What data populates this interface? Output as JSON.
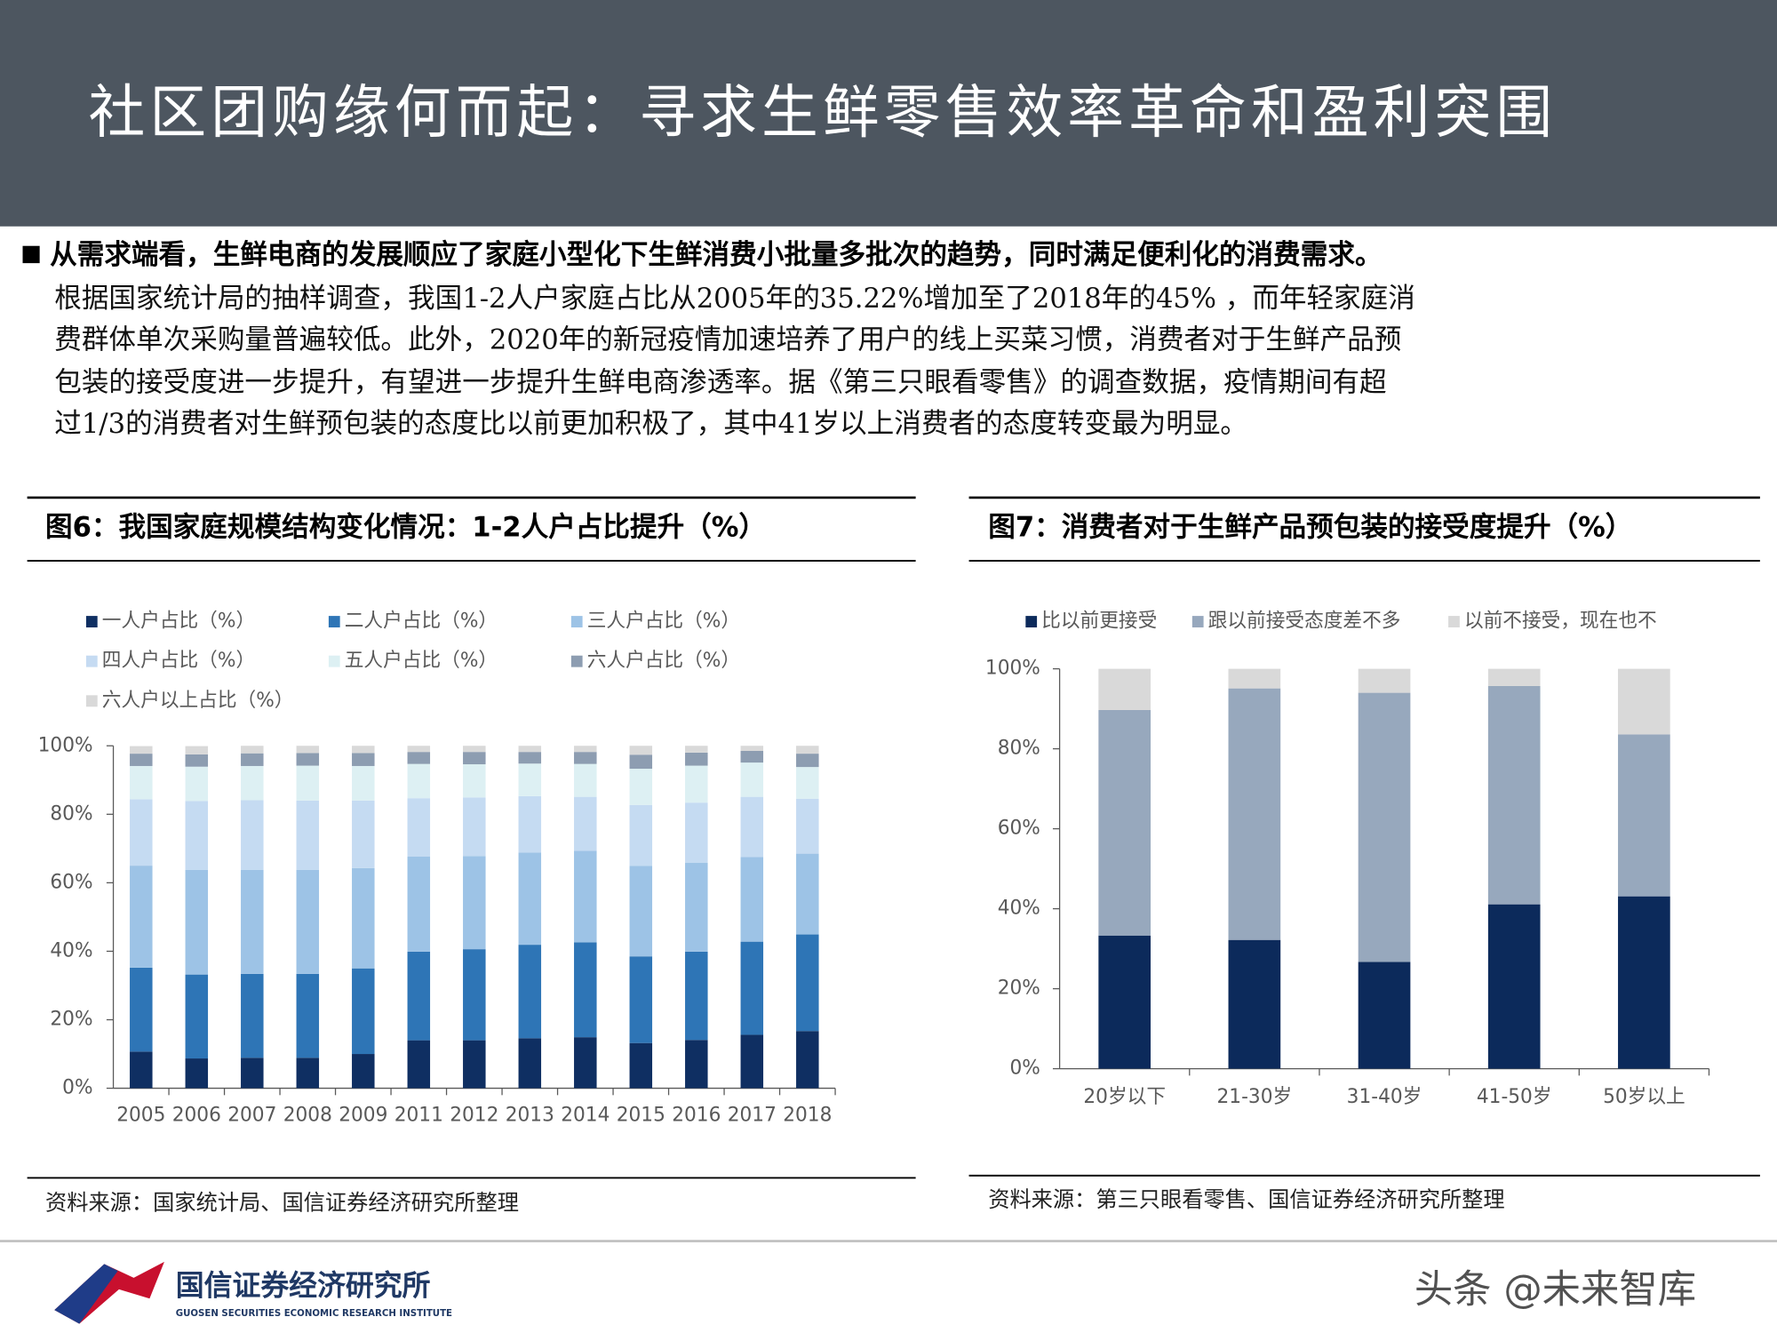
{
  "header": {
    "title": "社区团购缘何而起：寻求生鲜零售效率革命和盈利突围"
  },
  "intro": {
    "lead": "从需求端看，生鲜电商的发展顺应了家庭小型化下生鲜消费小批量多批次的趋势，同时满足便利化的消费需求。",
    "lines": [
      "根据国家统计局的抽样调查，我国1-2人户家庭占比从2005年的35.22%增加至了2018年的45% ，而年轻家庭消",
      "费群体单次采购量普遍较低。此外，2020年的新冠疫情加速培养了用户的线上买菜习惯，消费者对于生鲜产品预",
      "包装的接受度进一步提升，有望进一步提升生鲜电商渗透率。据《第三只眼看零售》的调查数据，疫情期间有超",
      "过1/3的消费者对生鲜预包装的态度比以前更加积极了，其中41岁以上消费者的态度转变最为明显。"
    ]
  },
  "chart_data": [
    {
      "type": "stacked-bar",
      "title": "图6：我国家庭规模结构变化情况：1-2人户占比提升（%）",
      "source": "资料来源：国家统计局、国信证券经济研究所整理",
      "categories": [
        "2005",
        "2006",
        "2007",
        "2008",
        "2009",
        "2011",
        "2012",
        "2013",
        "2014",
        "2015",
        "2016",
        "2017",
        "2018"
      ],
      "series": [
        {
          "name": "一人户占比（%）",
          "color": "#0f2f62",
          "values": [
            10.7,
            8.7,
            8.9,
            8.9,
            10.0,
            14.0,
            14.0,
            14.6,
            14.9,
            13.2,
            14.1,
            15.6,
            16.7
          ]
        },
        {
          "name": "二人户占比（%）",
          "color": "#2e75b6",
          "values": [
            24.5,
            24.5,
            24.5,
            24.5,
            25.0,
            25.9,
            26.6,
            27.3,
            27.7,
            25.3,
            25.8,
            27.2,
            28.2
          ]
        },
        {
          "name": "三人户占比（%）",
          "color": "#9dc3e6",
          "values": [
            29.8,
            30.6,
            30.4,
            30.4,
            29.3,
            27.8,
            27.2,
            26.9,
            26.7,
            26.4,
            25.9,
            24.7,
            23.6
          ]
        },
        {
          "name": "四人户占比（%）",
          "color": "#c5dbf2",
          "values": [
            19.4,
            20.1,
            20.3,
            20.2,
            19.7,
            17.0,
            17.1,
            16.5,
            15.8,
            17.8,
            17.6,
            17.6,
            16.0
          ]
        },
        {
          "name": "五人户占比（%）",
          "color": "#ddf0f3",
          "values": [
            9.7,
            10.0,
            10.0,
            10.2,
            10.1,
            10.0,
            9.7,
            9.5,
            9.6,
            10.6,
            10.8,
            10.0,
            9.3
          ]
        },
        {
          "name": "六人户占比（%）",
          "color": "#8d9db1",
          "values": [
            3.6,
            3.6,
            3.7,
            3.7,
            3.8,
            3.5,
            3.6,
            3.4,
            3.5,
            4.1,
            3.8,
            3.4,
            3.9
          ]
        },
        {
          "name": "六人户以上占比（%）",
          "color": "#d9d9d9",
          "values": [
            2.2,
            2.4,
            2.2,
            2.1,
            2.1,
            1.8,
            1.8,
            1.8,
            1.8,
            2.6,
            2.0,
            1.5,
            2.3
          ]
        }
      ],
      "ylim": [
        0,
        100
      ],
      "yticks": [
        {
          "value": 0,
          "label": "0%"
        },
        {
          "value": 20,
          "label": "20%"
        },
        {
          "value": 40,
          "label": "40%"
        },
        {
          "value": 60,
          "label": "60%"
        },
        {
          "value": 80,
          "label": "80%"
        },
        {
          "value": 100,
          "label": "100%"
        }
      ],
      "grid": false
    },
    {
      "type": "stacked-bar",
      "title": "图7：消费者对于生鲜产品预包装的接受度提升（%）",
      "source": "资料来源：第三只眼看零售、国信证券经济研究所整理",
      "categories": [
        "20岁以下",
        "21-30岁",
        "31-40岁",
        "41-50岁",
        "50岁以上"
      ],
      "series": [
        {
          "name": "比以前更接受",
          "color": "#0c2a5b",
          "values": [
            33.3,
            32.2,
            26.7,
            41.1,
            43.1
          ]
        },
        {
          "name": "跟以前接受态度差不多",
          "color": "#97a8bd",
          "values": [
            56.4,
            62.9,
            67.3,
            54.6,
            40.5
          ]
        },
        {
          "name": "以前不接受，现在也不",
          "color": "#d9d9d9",
          "values": [
            10.3,
            4.9,
            6.0,
            4.3,
            16.4
          ]
        }
      ],
      "ylim": [
        0,
        100
      ],
      "yticks": [
        {
          "value": 0,
          "label": "0%"
        },
        {
          "value": 20,
          "label": "20%"
        },
        {
          "value": 40,
          "label": "40%"
        },
        {
          "value": 60,
          "label": "60%"
        },
        {
          "value": 80,
          "label": "80%"
        },
        {
          "value": 100,
          "label": "100%"
        }
      ],
      "grid": false
    }
  ],
  "footer": {
    "logo": "国信证券经济研究所",
    "logo_sub": "GUOSEN SECURITIES ECONOMIC RESEARCH INSTITUTE",
    "watermark": "头条 @未来智库"
  }
}
